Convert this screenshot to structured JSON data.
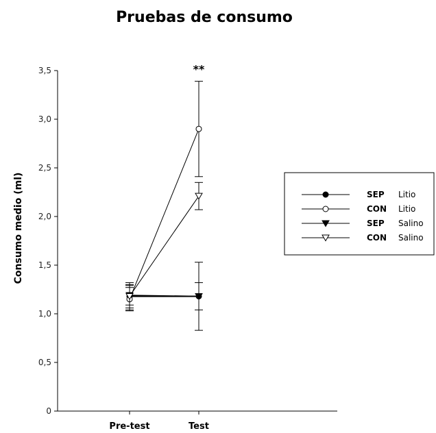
{
  "chart_data": {
    "type": "line",
    "title": "Pruebas de consumo",
    "ylabel": "Consumo medio (ml)",
    "xlabel": "",
    "categories": [
      "Pre-test",
      "Test"
    ],
    "ylim": [
      0,
      3.5
    ],
    "yticks": [
      "0",
      "0,5",
      "1,0",
      "1,5",
      "2,0",
      "2,5",
      "3,0",
      "3,5"
    ],
    "ytick_values": [
      0,
      0.5,
      1.0,
      1.5,
      2.0,
      2.5,
      3.0,
      3.5
    ],
    "grid": false,
    "legend_position": "right",
    "annotation": "**",
    "annotation_category": "Test",
    "series": [
      {
        "group": "SEP",
        "treatment": "Litio",
        "marker": "filled-circle",
        "values": [
          1.18,
          1.18
        ],
        "errors": [
          0.12,
          0.14
        ]
      },
      {
        "group": "CON",
        "treatment": "Litio",
        "marker": "open-circle",
        "values": [
          1.15,
          2.9
        ],
        "errors": [
          0.12,
          0.49
        ]
      },
      {
        "group": "SEP",
        "treatment": "Salino",
        "marker": "filled-triangle-down",
        "values": [
          1.19,
          1.18
        ],
        "errors": [
          0.1,
          0.35
        ]
      },
      {
        "group": "CON",
        "treatment": "Salino",
        "marker": "open-triangle-down",
        "values": [
          1.18,
          2.21
        ],
        "errors": [
          0.14,
          0.14
        ]
      }
    ]
  }
}
